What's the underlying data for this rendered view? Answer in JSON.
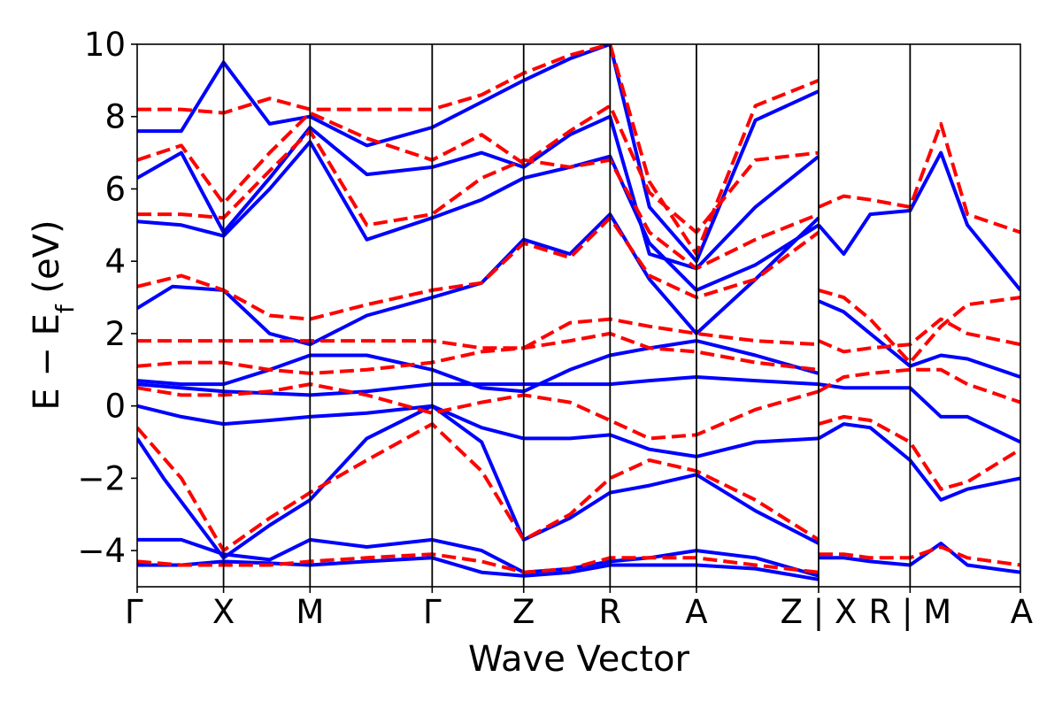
{
  "chart_data": {
    "type": "line",
    "title": "",
    "xlabel": "Wave Vector",
    "ylabel": "E − E",
    "ylabel_subscript": "f",
    "ylabel_unit": " (eV)",
    "ylim": [
      -5,
      10
    ],
    "yticks": [
      -4,
      -2,
      0,
      2,
      4,
      6,
      8,
      10
    ],
    "ytick_labels": [
      "−4",
      "−2",
      "0",
      "2",
      "4",
      "6",
      "8",
      "10"
    ],
    "x_range": [
      0,
      1
    ],
    "xticks": [
      {
        "x": 0.0,
        "label": "Γ"
      },
      {
        "x": 0.0978,
        "label": "X"
      },
      {
        "x": 0.1957,
        "label": "M"
      },
      {
        "x": 0.334,
        "label": "Γ"
      },
      {
        "x": 0.4376,
        "label": "Z"
      },
      {
        "x": 0.5354,
        "label": "R"
      },
      {
        "x": 0.6332,
        "label": "A"
      },
      {
        "x": 0.7715,
        "label": "Z | X"
      },
      {
        "x": 0.8751,
        "label": "R | M"
      },
      {
        "x": 1.0,
        "label": "A"
      }
    ],
    "grid": false,
    "legend": "none",
    "line_colors": {
      "solid": "#0000ff",
      "dashed": "#ff0000"
    },
    "series": [
      {
        "style": "solid",
        "x": [
          0,
          0.05,
          0.0978,
          0.15,
          0.1957,
          0.26,
          0.334,
          0.39,
          0.4376,
          0.49,
          0.5354,
          0.58,
          0.6332,
          0.7,
          0.7715
        ],
        "y": [
          -4.4,
          -4.4,
          -4.3,
          -4.35,
          -4.4,
          -4.3,
          -4.2,
          -4.6,
          -4.7,
          -4.6,
          -4.4,
          -4.4,
          -4.4,
          -4.5,
          -4.8
        ]
      },
      {
        "style": "solid",
        "x": [
          0,
          0.05,
          0.0978,
          0.15,
          0.1957,
          0.26,
          0.334,
          0.39,
          0.4376,
          0.49,
          0.5354,
          0.58,
          0.6332,
          0.7,
          0.7715
        ],
        "y": [
          -3.7,
          -3.7,
          -4.1,
          -4.25,
          -3.7,
          -3.9,
          -3.7,
          -4.0,
          -4.6,
          -4.5,
          -4.3,
          -4.2,
          -4.0,
          -4.2,
          -4.7
        ]
      },
      {
        "style": "solid",
        "x": [
          0,
          0.03,
          0.0978,
          0.15,
          0.1957,
          0.26,
          0.334,
          0.39,
          0.4376,
          0.49,
          0.5354,
          0.58,
          0.6332,
          0.7,
          0.7715
        ],
        "y": [
          -0.9,
          -2.0,
          -4.2,
          -3.3,
          -2.6,
          -0.9,
          0.0,
          -1.0,
          -3.7,
          -3.1,
          -2.4,
          -2.2,
          -1.9,
          -2.9,
          -3.8
        ]
      },
      {
        "style": "solid",
        "x": [
          0,
          0.05,
          0.0978,
          0.15,
          0.1957,
          0.26,
          0.334,
          0.39,
          0.4376,
          0.49,
          0.5354,
          0.58,
          0.6332,
          0.7,
          0.7715
        ],
        "y": [
          0.0,
          -0.3,
          -0.5,
          -0.4,
          -0.3,
          -0.2,
          0.0,
          -0.6,
          -0.9,
          -0.9,
          -0.8,
          -1.2,
          -1.4,
          -1.0,
          -0.9
        ]
      },
      {
        "style": "solid",
        "x": [
          0,
          0.05,
          0.0978,
          0.15,
          0.1957,
          0.26,
          0.334,
          0.39,
          0.4376,
          0.49,
          0.5354,
          0.58,
          0.6332,
          0.7,
          0.7715
        ],
        "y": [
          0.6,
          0.5,
          0.4,
          0.35,
          0.3,
          0.4,
          0.6,
          0.6,
          0.6,
          0.6,
          0.6,
          0.7,
          0.8,
          0.7,
          0.6
        ]
      },
      {
        "style": "solid",
        "x": [
          0,
          0.05,
          0.0978,
          0.15,
          0.1957,
          0.26,
          0.334,
          0.39,
          0.4376,
          0.49,
          0.5354,
          0.58,
          0.6332,
          0.7,
          0.7715
        ],
        "y": [
          0.7,
          0.6,
          0.6,
          1.0,
          1.4,
          1.4,
          1.0,
          0.5,
          0.4,
          1.0,
          1.4,
          1.6,
          1.8,
          1.4,
          0.9
        ]
      },
      {
        "style": "solid",
        "x": [
          0,
          0.04,
          0.0978,
          0.15,
          0.1957,
          0.26,
          0.334,
          0.39,
          0.4376,
          0.49,
          0.5354,
          0.58,
          0.6332,
          0.7,
          0.7715
        ],
        "y": [
          2.7,
          3.3,
          3.2,
          2.0,
          1.7,
          2.5,
          3.0,
          3.4,
          4.6,
          4.2,
          5.3,
          3.5,
          2.0,
          3.5,
          5.2
        ]
      },
      {
        "style": "solid",
        "x": [
          0,
          0.05,
          0.0978,
          0.15,
          0.1957,
          0.26,
          0.334,
          0.39,
          0.4376,
          0.49,
          0.5354,
          0.58,
          0.6332,
          0.7,
          0.7715
        ],
        "y": [
          5.1,
          5.0,
          4.7,
          6.0,
          7.3,
          4.6,
          5.2,
          5.7,
          6.3,
          6.6,
          6.9,
          4.5,
          3.2,
          3.9,
          5.0
        ]
      },
      {
        "style": "solid",
        "x": [
          0,
          0.05,
          0.0978,
          0.15,
          0.1957,
          0.26,
          0.334,
          0.39,
          0.4376,
          0.49,
          0.5354,
          0.58,
          0.6332,
          0.7,
          0.7715
        ],
        "y": [
          6.3,
          7.0,
          4.8,
          6.3,
          7.7,
          6.4,
          6.6,
          7.0,
          6.6,
          7.5,
          8.0,
          4.2,
          3.8,
          5.5,
          6.9
        ]
      },
      {
        "style": "solid",
        "x": [
          0,
          0.05,
          0.0978,
          0.15,
          0.1957,
          0.26,
          0.334,
          0.39,
          0.4376,
          0.49,
          0.5354,
          0.58,
          0.6332,
          0.7,
          0.7715
        ],
        "y": [
          7.6,
          7.6,
          9.5,
          7.8,
          8.0,
          7.2,
          7.7,
          8.4,
          9.0,
          9.6,
          10.0,
          5.5,
          4.0,
          7.9,
          8.7
        ]
      },
      {
        "style": "solid",
        "x": [
          0.7715,
          0.8,
          0.83,
          0.8751,
          0.91,
          0.94,
          1.0
        ],
        "y": [
          -0.9,
          -0.5,
          -0.6,
          -1.5,
          -2.6,
          -2.3,
          -2.0
        ]
      },
      {
        "style": "solid",
        "x": [
          0.7715,
          0.8,
          0.83,
          0.8751,
          0.91,
          0.94,
          1.0
        ],
        "y": [
          0.6,
          0.5,
          0.5,
          0.5,
          -0.3,
          -0.3,
          -1.0
        ]
      },
      {
        "style": "solid",
        "x": [
          0.7715,
          0.8,
          0.83,
          0.8751,
          0.91,
          0.94,
          1.0
        ],
        "y": [
          2.9,
          2.6,
          2.0,
          1.1,
          1.4,
          1.3,
          0.8
        ]
      },
      {
        "style": "solid",
        "x": [
          0.7715,
          0.8,
          0.83,
          0.8751,
          0.91,
          0.94,
          1.0
        ],
        "y": [
          5.0,
          4.2,
          5.3,
          5.4,
          7.0,
          5.0,
          3.2
        ]
      },
      {
        "style": "solid",
        "x": [
          0.7715,
          0.8,
          0.83,
          0.8751,
          0.91,
          0.94,
          1.0
        ],
        "y": [
          -4.2,
          -4.2,
          -4.3,
          -4.4,
          -3.8,
          -4.4,
          -4.6
        ]
      },
      {
        "style": "dashed",
        "x": [
          0,
          0.05,
          0.0978,
          0.15,
          0.1957,
          0.26,
          0.334,
          0.39,
          0.4376,
          0.49,
          0.5354,
          0.58,
          0.6332,
          0.7,
          0.7715
        ],
        "y": [
          -4.3,
          -4.4,
          -4.4,
          -4.4,
          -4.3,
          -4.2,
          -4.1,
          -4.3,
          -4.6,
          -4.5,
          -4.2,
          -4.2,
          -4.2,
          -4.4,
          -4.6
        ]
      },
      {
        "style": "dashed",
        "x": [
          0,
          0.05,
          0.0978,
          0.15,
          0.1957,
          0.26,
          0.334,
          0.39,
          0.4376,
          0.49,
          0.5354,
          0.58,
          0.6332,
          0.7,
          0.7715
        ],
        "y": [
          -0.6,
          -2.0,
          -4.0,
          -3.1,
          -2.4,
          -1.5,
          -0.5,
          -1.8,
          -3.7,
          -3.0,
          -2.0,
          -1.5,
          -1.8,
          -2.6,
          -3.7
        ]
      },
      {
        "style": "dashed",
        "x": [
          0,
          0.05,
          0.0978,
          0.15,
          0.1957,
          0.26,
          0.334,
          0.39,
          0.4376,
          0.49,
          0.5354,
          0.58,
          0.6332,
          0.7,
          0.7715
        ],
        "y": [
          0.5,
          0.3,
          0.3,
          0.4,
          0.6,
          0.3,
          -0.2,
          0.1,
          0.3,
          0.1,
          -0.4,
          -0.9,
          -0.8,
          -0.1,
          0.4
        ]
      },
      {
        "style": "dashed",
        "x": [
          0,
          0.05,
          0.0978,
          0.15,
          0.1957,
          0.26,
          0.334,
          0.39,
          0.4376,
          0.49,
          0.5354,
          0.58,
          0.6332,
          0.7,
          0.7715
        ],
        "y": [
          1.1,
          1.2,
          1.2,
          1.0,
          0.9,
          1.0,
          1.2,
          1.5,
          1.6,
          1.8,
          2.0,
          1.6,
          1.5,
          1.2,
          1.0
        ]
      },
      {
        "style": "dashed",
        "x": [
          0,
          0.05,
          0.0978,
          0.15,
          0.1957,
          0.26,
          0.334,
          0.39,
          0.4376,
          0.49,
          0.5354,
          0.58,
          0.6332,
          0.7,
          0.7715
        ],
        "y": [
          1.8,
          1.8,
          1.8,
          1.8,
          1.8,
          1.8,
          1.8,
          1.6,
          1.6,
          2.3,
          2.4,
          2.2,
          2.0,
          1.8,
          1.7
        ]
      },
      {
        "style": "dashed",
        "x": [
          0,
          0.05,
          0.0978,
          0.15,
          0.1957,
          0.26,
          0.334,
          0.39,
          0.4376,
          0.49,
          0.5354,
          0.58,
          0.6332,
          0.7,
          0.7715
        ],
        "y": [
          3.3,
          3.6,
          3.2,
          2.5,
          2.4,
          2.8,
          3.2,
          3.4,
          4.5,
          4.1,
          5.2,
          3.6,
          3.0,
          3.5,
          4.8
        ]
      },
      {
        "style": "dashed",
        "x": [
          0,
          0.05,
          0.0978,
          0.15,
          0.1957,
          0.26,
          0.334,
          0.39,
          0.4376,
          0.49,
          0.5354,
          0.58,
          0.6332,
          0.7,
          0.7715
        ],
        "y": [
          5.3,
          5.3,
          5.2,
          6.5,
          7.6,
          5.0,
          5.3,
          6.3,
          6.8,
          6.6,
          6.8,
          4.8,
          3.8,
          4.6,
          5.3
        ]
      },
      {
        "style": "dashed",
        "x": [
          0,
          0.05,
          0.0978,
          0.15,
          0.1957,
          0.26,
          0.334,
          0.39,
          0.4376,
          0.49,
          0.5354,
          0.58,
          0.6332,
          0.7,
          0.7715
        ],
        "y": [
          6.8,
          7.2,
          5.6,
          7.0,
          8.1,
          7.4,
          6.8,
          7.5,
          6.7,
          7.6,
          8.3,
          5.9,
          4.8,
          6.8,
          7.0
        ]
      },
      {
        "style": "dashed",
        "x": [
          0,
          0.05,
          0.0978,
          0.15,
          0.1957,
          0.26,
          0.334,
          0.39,
          0.4376,
          0.49,
          0.5354,
          0.58,
          0.6332,
          0.7,
          0.7715
        ],
        "y": [
          8.2,
          8.2,
          8.1,
          8.5,
          8.2,
          8.2,
          8.2,
          8.6,
          9.2,
          9.7,
          10.0,
          6.2,
          4.2,
          8.3,
          9.0
        ]
      },
      {
        "style": "dashed",
        "x": [
          0.7715,
          0.8,
          0.83,
          0.8751,
          0.91,
          0.94,
          1.0
        ],
        "y": [
          -0.5,
          -0.3,
          -0.4,
          -1.0,
          -2.3,
          -2.1,
          -1.2
        ]
      },
      {
        "style": "dashed",
        "x": [
          0.7715,
          0.8,
          0.83,
          0.8751,
          0.91,
          0.94,
          1.0
        ],
        "y": [
          0.4,
          0.8,
          0.9,
          1.0,
          1.0,
          0.6,
          0.1
        ]
      },
      {
        "style": "dashed",
        "x": [
          0.7715,
          0.8,
          0.83,
          0.8751,
          0.91,
          0.94,
          1.0
        ],
        "y": [
          1.8,
          1.5,
          1.6,
          1.7,
          2.4,
          2.0,
          1.7
        ]
      },
      {
        "style": "dashed",
        "x": [
          0.7715,
          0.8,
          0.83,
          0.8751,
          0.91,
          0.94,
          1.0
        ],
        "y": [
          3.2,
          3.0,
          2.4,
          1.2,
          2.2,
          2.8,
          3.0
        ]
      },
      {
        "style": "dashed",
        "x": [
          0.7715,
          0.8,
          0.83,
          0.8751,
          0.91,
          0.94,
          1.0
        ],
        "y": [
          5.5,
          5.8,
          5.7,
          5.5,
          7.8,
          5.3,
          4.8
        ]
      },
      {
        "style": "dashed",
        "x": [
          0.7715,
          0.8,
          0.83,
          0.8751,
          0.91,
          0.94,
          1.0
        ],
        "y": [
          -4.1,
          -4.1,
          -4.2,
          -4.2,
          -3.9,
          -4.2,
          -4.4
        ]
      }
    ]
  }
}
